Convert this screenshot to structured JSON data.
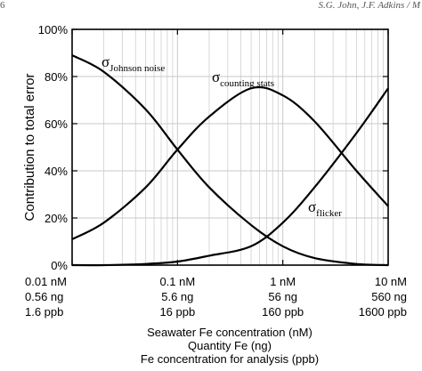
{
  "page_header": {
    "page_number": "6",
    "running_head": "S.G. John, J.F. Adkins / M"
  },
  "chart_data": {
    "type": "line",
    "title": "",
    "ylabel": "Contribution to total error",
    "xlabels": [
      "Seawater Fe concentration (nM)",
      "Quantity Fe (ng)",
      "Fe concentration for analysis (ppb)"
    ],
    "x_scale": "log",
    "xlim": [
      0.01,
      10
    ],
    "ylim": [
      0,
      100
    ],
    "grid": true,
    "y_ticks": [
      "0%",
      "20%",
      "40%",
      "60%",
      "80%",
      "100%"
    ],
    "y_tick_values": [
      0,
      20,
      40,
      60,
      80,
      100
    ],
    "x_tick_values": [
      0.01,
      0.1,
      1,
      10
    ],
    "x_tick_labels": [
      [
        "0.01 nM",
        "0.56 ng",
        "1.6 ppb"
      ],
      [
        "0.1 nM",
        "5.6 ng",
        "16 ppb"
      ],
      [
        "1 nM",
        "56 ng",
        "160 ppb"
      ],
      [
        "10 nM",
        "560 ng",
        "1600 ppb"
      ]
    ],
    "series": [
      {
        "name": "σ Johnson noise",
        "label_main": "σ",
        "label_sub": "Johnson noise",
        "x": [
          0.01,
          0.02,
          0.05,
          0.1,
          0.2,
          0.5,
          1,
          2,
          5,
          10
        ],
        "values": [
          89,
          82,
          66,
          49,
          33,
          17,
          8,
          3,
          0.5,
          0
        ]
      },
      {
        "name": "σ counting stats",
        "label_main": "σ",
        "label_sub": "counting stats",
        "x": [
          0.01,
          0.02,
          0.05,
          0.1,
          0.2,
          0.5,
          1,
          2,
          5,
          10
        ],
        "values": [
          11,
          18,
          33,
          49,
          63,
          75,
          72,
          61,
          40,
          25
        ]
      },
      {
        "name": "σ flicker",
        "label_main": "σ",
        "label_sub": "flicker",
        "x": [
          0.01,
          0.02,
          0.05,
          0.1,
          0.2,
          0.5,
          1,
          2,
          5,
          10
        ],
        "values": [
          0,
          0,
          0.5,
          1.5,
          4,
          8,
          18,
          33,
          56,
          75
        ]
      }
    ]
  }
}
